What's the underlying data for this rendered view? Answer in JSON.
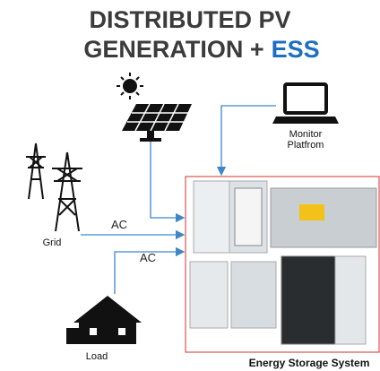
{
  "title": {
    "line1": "DISTRIBUTED PV",
    "line2": "GENERATION +",
    "highlight": "ESS"
  },
  "labels": {
    "monitor": [
      "Monitor",
      "Platfrom"
    ],
    "grid": "Grid",
    "ac_grid": "AC",
    "ac_load": "AC",
    "load": "Load",
    "ess": "Energy Storage System"
  }
}
